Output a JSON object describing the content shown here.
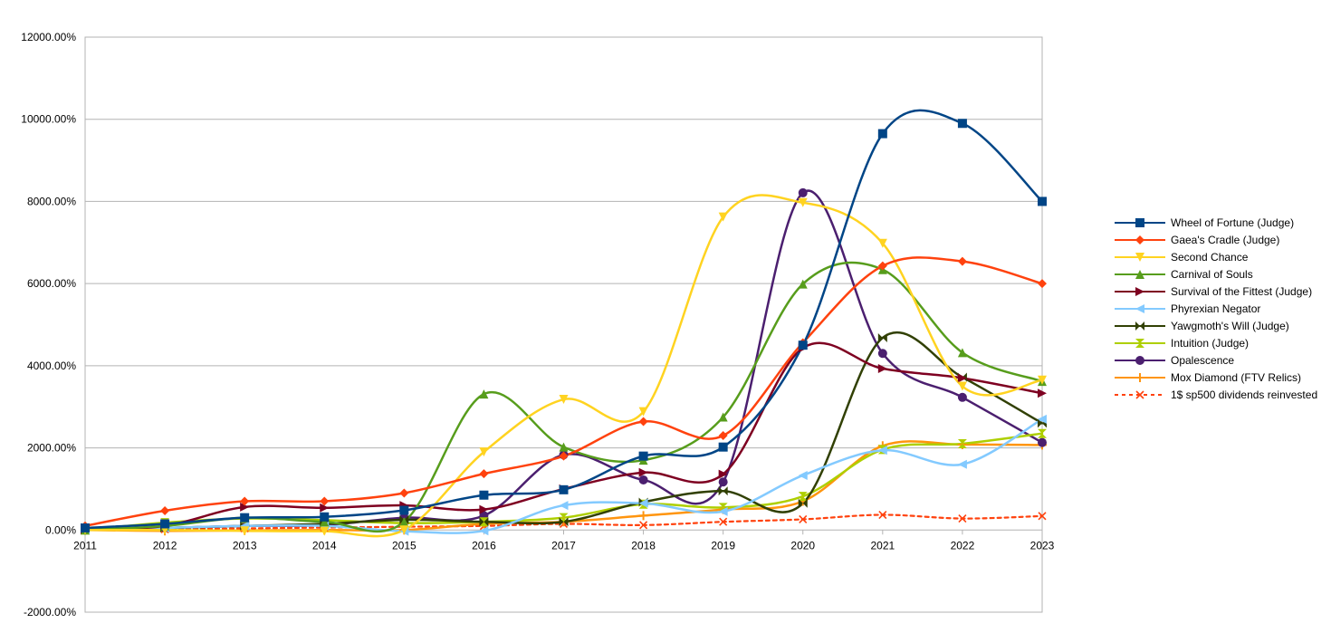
{
  "chart_data": {
    "type": "line",
    "title": "",
    "xlabel": "",
    "ylabel": "",
    "x": [
      2011,
      2012,
      2013,
      2014,
      2015,
      2016,
      2017,
      2018,
      2019,
      2020,
      2021,
      2022,
      2023
    ],
    "ylim": [
      -2000,
      12000
    ],
    "y_ticks": [
      "-2000.00%",
      "0.00%",
      "2000.00%",
      "4000.00%",
      "6000.00%",
      "8000.00%",
      "10000.00%",
      "12000.00%"
    ],
    "y_tick_values": [
      -2000,
      0,
      2000,
      4000,
      6000,
      8000,
      10000,
      12000
    ],
    "x_ticks": [
      "2011",
      "2012",
      "2013",
      "2014",
      "2015",
      "2016",
      "2017",
      "2018",
      "2019",
      "2020",
      "2021",
      "2022",
      "2023"
    ],
    "grid": "horizontal",
    "legend_position": "right",
    "series": [
      {
        "name": "Wheel of Fortune (Judge)",
        "color": "#004586",
        "marker": "square",
        "dashed": false,
        "values": [
          50,
          150,
          300,
          320,
          480,
          850,
          980,
          1800,
          2020,
          4500,
          9650,
          9900,
          8000
        ]
      },
      {
        "name": "Gaea's Cradle (Judge)",
        "color": "#ff420e",
        "marker": "diamond",
        "dashed": false,
        "values": [
          100,
          470,
          700,
          700,
          900,
          1370,
          1800,
          2640,
          2300,
          4560,
          6430,
          6540,
          6000
        ]
      },
      {
        "name": "Second Chance",
        "color": "#ffd320",
        "marker": "triangle-down",
        "dashed": false,
        "values": [
          0,
          0,
          -20,
          -30,
          0,
          1900,
          3180,
          2880,
          7620,
          7970,
          6980,
          3500,
          3650
        ]
      },
      {
        "name": "Carnival of Souls",
        "color": "#579d1c",
        "marker": "triangle-up",
        "dashed": false,
        "values": [
          0,
          100,
          300,
          200,
          200,
          3310,
          2020,
          1700,
          2750,
          5990,
          6340,
          4320,
          3620
        ]
      },
      {
        "name": "Survival of the Fittest (Judge)",
        "color": "#7e0021",
        "marker": "triangle-right",
        "dashed": false,
        "values": [
          0,
          100,
          560,
          540,
          600,
          500,
          1000,
          1400,
          1360,
          4430,
          3930,
          3700,
          3330
        ]
      },
      {
        "name": "Phyrexian Negator",
        "color": "#83caff",
        "marker": "triangle-left",
        "dashed": false,
        "values": [
          0,
          50,
          100,
          100,
          -30,
          -20,
          600,
          650,
          450,
          1330,
          1940,
          1600,
          2700
        ]
      },
      {
        "name": "Yawgmoth's Will (Judge)",
        "color": "#314004",
        "marker": "bowtie",
        "dashed": false,
        "values": [
          0,
          50,
          100,
          150,
          250,
          200,
          200,
          680,
          950,
          650,
          4680,
          3720,
          2600
        ]
      },
      {
        "name": "Intuition (Judge)",
        "color": "#aecf00",
        "marker": "hourglass",
        "dashed": false,
        "values": [
          0,
          180,
          280,
          240,
          170,
          200,
          300,
          630,
          550,
          820,
          1960,
          2100,
          2350
        ]
      },
      {
        "name": "Opalescence",
        "color": "#4b1f6f",
        "marker": "circle",
        "dashed": false,
        "values": [
          0,
          50,
          100,
          120,
          300,
          350,
          1830,
          1220,
          1170,
          8210,
          4300,
          3230,
          2130
        ]
      },
      {
        "name": "Mox Diamond (FTV Relics)",
        "color": "#ff950e",
        "marker": "plus",
        "dashed": false,
        "values": [
          0,
          -20,
          -10,
          0,
          0,
          150,
          200,
          350,
          500,
          700,
          2050,
          2080,
          2070
        ]
      },
      {
        "name": "1$ sp500 dividends reinvested",
        "color": "#ff420e",
        "marker": "x",
        "dashed": true,
        "values": [
          0,
          20,
          40,
          60,
          80,
          100,
          150,
          120,
          200,
          260,
          370,
          280,
          340
        ]
      }
    ]
  }
}
